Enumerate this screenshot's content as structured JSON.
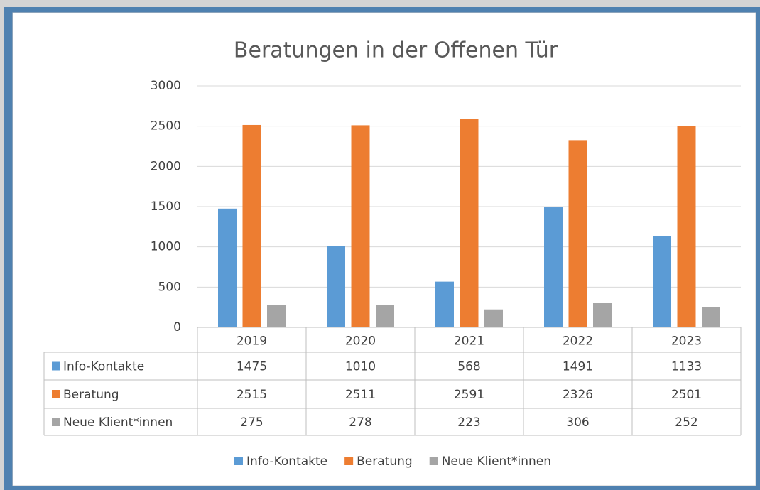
{
  "chart_data": {
    "type": "bar",
    "title": "Beratungen in der Offenen Tür",
    "categories": [
      "2019",
      "2020",
      "2021",
      "2022",
      "2023"
    ],
    "series": [
      {
        "name": "Info-Kontakte",
        "color": "#5b9bd5",
        "values": [
          1475,
          1010,
          568,
          1491,
          1133
        ]
      },
      {
        "name": "Beratung",
        "color": "#ed7d31",
        "values": [
          2515,
          2511,
          2591,
          2326,
          2501
        ]
      },
      {
        "name": "Neue Klient*innen",
        "color": "#a5a5a5",
        "values": [
          275,
          278,
          223,
          306,
          252
        ]
      }
    ],
    "ylim": [
      0,
      3000
    ],
    "yticks": [
      0,
      500,
      1000,
      1500,
      2000,
      2500,
      3000
    ],
    "grid": true,
    "legend": "bottom",
    "data_table": true
  }
}
